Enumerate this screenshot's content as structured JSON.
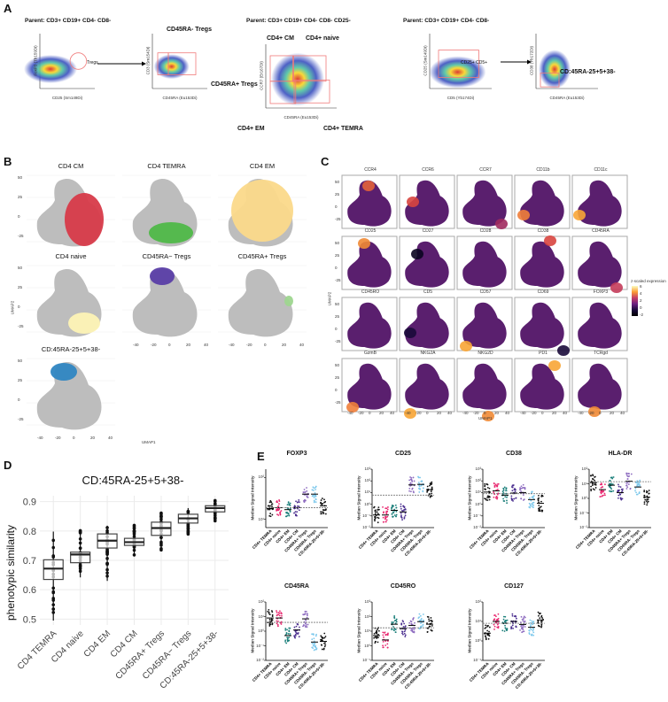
{
  "panels": {
    "a": "A",
    "b": "B",
    "c": "C",
    "d": "D",
    "e": "E"
  },
  "panel_a": {
    "titles": [
      "Parent: CD3+ CD19+ CD4- CD8-",
      "Parent: CD3+ CD19+ CD4- CD8- CD25-",
      "Parent: CD3+ CD19+ CD4- CD8-"
    ],
    "plots": [
      {
        "xlabel": "CD25 (Sm149Di)",
        "ylabel": "FoxP3 (Tb159Di)",
        "gates": [
          "Tregs"
        ]
      },
      {
        "xlabel": "CD45RA (Eu153Di)",
        "ylabel": "CD3 (Sm154Di)",
        "gates": [
          "CD45RA- Tregs",
          "CD45RA+ Tregs"
        ]
      },
      {
        "xlabel": "CD45RA (Eu153Di)",
        "ylabel": "CCR7 (Er167Di)",
        "gates": [
          "CD4+ CM",
          "CD4+ naive",
          "CD4+ EM",
          "CD4+ TEMRA"
        ]
      },
      {
        "xlabel": "CD5 (Yb174Di)",
        "ylabel": "CD25 (Sm149Di)",
        "gates": [
          "CD25+ CD5+"
        ]
      },
      {
        "xlabel": "CD45RA (Eu153Di)",
        "ylabel": "CD38 (Yb172Di)",
        "gates": [
          "CD:45RA-25+5+38-"
        ]
      }
    ]
  },
  "panel_b": {
    "xlabel": "UMAP1",
    "ylabel": "UMAP2",
    "facets": [
      {
        "title": "CD4 CM",
        "color": "#d73a49"
      },
      {
        "title": "CD4 TEMRA",
        "color": "#4fb848"
      },
      {
        "title": "CD4 EM",
        "color": "#fbd98a"
      },
      {
        "title": "CD4 naive",
        "color": "#fdf3b5"
      },
      {
        "title": "CD45RA− Tregs",
        "color": "#5a3ea6"
      },
      {
        "title": "CD45RA+ Tregs",
        "color": "#9ed68f"
      },
      {
        "title": "CD:45RA-25+5+38-",
        "color": "#2f86c2"
      }
    ],
    "xticks": [
      "-40",
      "-20",
      "0",
      "20",
      "40"
    ],
    "yticks": [
      "50",
      "25",
      "0",
      "-25"
    ]
  },
  "panel_c": {
    "xlabel": "UMAP1",
    "ylabel": "UMAP2",
    "markers": [
      "CCR4",
      "CCR6",
      "CCR7",
      "CD11b",
      "CD11c",
      "CD25",
      "CD27",
      "CD28",
      "CD38",
      "CD45RA",
      "CD45RO",
      "CD5",
      "CD57",
      "CD69",
      "FOXP3",
      "GzmB",
      "NKG2A",
      "NKG2D",
      "PD1",
      "TCRgd"
    ],
    "legend": {
      "title": "z-scaled expression",
      "ticks": [
        "6",
        "4",
        "2",
        "0",
        "-2"
      ]
    },
    "xticks": [
      "-40",
      "-20",
      "0",
      "20",
      "40"
    ],
    "yticks": [
      "50",
      "25",
      "0",
      "-25"
    ]
  },
  "chart_data": [
    {
      "type": "box",
      "title": "CD:45RA-25+5+38-",
      "ylabel": "phenotypic similarity",
      "xlabel": "",
      "categories": [
        "CD4 TEMRA",
        "CD4 naive",
        "CD4 EM",
        "CD4 CM",
        "CD45RA+ Tregs",
        "CD45RA− Tregs",
        "CD:45RA-25+5+38-"
      ],
      "median": [
        0.672,
        0.72,
        0.767,
        0.762,
        0.81,
        0.843,
        0.878
      ],
      "q1": [
        0.635,
        0.692,
        0.742,
        0.751,
        0.785,
        0.827,
        0.865
      ],
      "q3": [
        0.702,
        0.728,
        0.79,
        0.775,
        0.83,
        0.857,
        0.886
      ],
      "min": [
        0.495,
        0.642,
        0.63,
        0.713,
        0.733,
        0.789,
        0.833
      ],
      "max": [
        0.798,
        0.803,
        0.818,
        0.822,
        0.862,
        0.878,
        0.908
      ],
      "ylim": [
        0.48,
        0.92
      ],
      "yticks": [
        "0.5",
        "0.6",
        "0.7",
        "0.8",
        "0.9"
      ],
      "grid": true
    },
    {
      "type": "scatter",
      "panel": "E",
      "ylabel": "Median Signal Intensity",
      "yscale": "log",
      "categories": [
        "CD4+ TEMRA",
        "CD4+ naive",
        "CD4+ EM",
        "CD4+ CM",
        "CD45RA+ Tregs",
        "CD45RA- Tregs",
        "CD:45RA-25+5+38-"
      ],
      "colors": [
        "#111111",
        "#e8266e",
        "#1a7f7a",
        "#4b2f8f",
        "#8e6cc0",
        "#7cc8ec",
        "#111111"
      ],
      "panels": [
        {
          "title": "FOXP3",
          "ylog": [
            0.8,
            2.2
          ],
          "ticks": [
            [
              "10²",
              2
            ],
            [
              "10¹",
              1
            ]
          ],
          "median": [
            18,
            19,
            17,
            19,
            40,
            40,
            21
          ],
          "threshold": 19
        },
        {
          "title": "CD25",
          "ylog": [
            -2,
            3
          ],
          "ticks": [
            [
              "10³",
              3
            ],
            [
              "10²",
              2
            ],
            [
              "10¹",
              1
            ],
            [
              "10⁰",
              0
            ],
            [
              "10⁻¹",
              -1
            ],
            [
              "10⁻²",
              -2
            ]
          ],
          "median": [
            0.12,
            0.12,
            0.3,
            0.22,
            45,
            50,
            18
          ],
          "threshold": 6
        },
        {
          "title": "CD38",
          "ylog": [
            -2,
            3
          ],
          "ticks": [
            [
              "10³",
              3
            ],
            [
              "10²",
              2
            ],
            [
              "10¹",
              1
            ],
            [
              "10⁰",
              0
            ],
            [
              "10⁻¹",
              -1
            ],
            [
              "10⁻²",
              -2
            ]
          ],
          "median": [
            11,
            14,
            6,
            9,
            10,
            2.5,
            1.2
          ],
          "threshold": 8
        },
        {
          "title": "HLA-DR",
          "ylog": [
            -2,
            2
          ],
          "ticks": [
            [
              "10²",
              2
            ],
            [
              "10¹",
              1
            ],
            [
              "10⁰",
              0
            ],
            [
              "10⁻¹",
              -1
            ],
            [
              "10⁻²",
              -2
            ]
          ],
          "median": [
            12,
            4,
            8,
            2.5,
            15,
            6,
            1.2
          ],
          "threshold": 14
        },
        {
          "title": "CD45RA",
          "ylog": [
            -2,
            2
          ],
          "ticks": [
            [
              "10²",
              2
            ],
            [
              "10¹",
              1
            ],
            [
              "10⁰",
              0
            ],
            [
              "10⁻¹",
              -1
            ],
            [
              "10⁻²",
              -2
            ]
          ],
          "median": [
            8,
            8,
            0.5,
            1.2,
            7,
            0.18,
            0.2
          ],
          "threshold": 4
        },
        {
          "title": "CD45RO",
          "ylog": [
            -1,
            3
          ],
          "ticks": [
            [
              "10³",
              3
            ],
            [
              "10²",
              2
            ],
            [
              "10¹",
              1
            ],
            [
              "10⁰",
              0
            ],
            [
              "10⁻¹",
              -1
            ]
          ],
          "median": [
            5,
            2.5,
            30,
            15,
            25,
            45,
            30
          ],
          "threshold": 17
        },
        {
          "title": "CD127",
          "ylog": [
            -1,
            2
          ],
          "ticks": [
            [
              "10²",
              2
            ],
            [
              "10¹",
              1
            ],
            [
              "10⁰",
              0
            ],
            [
              "10⁻¹",
              -1
            ]
          ],
          "median": [
            2.5,
            10,
            8,
            10,
            7,
            5,
            12
          ],
          "threshold": 8
        }
      ]
    }
  ]
}
